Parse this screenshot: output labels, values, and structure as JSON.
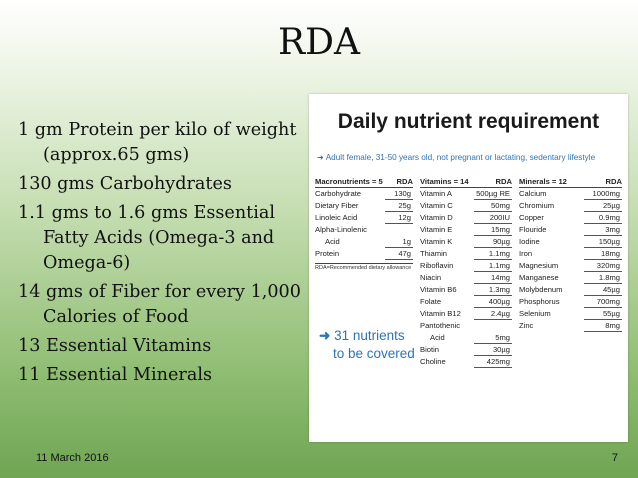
{
  "slide": {
    "title": "RDA",
    "bullets": [
      "1 gm Protein per kilo of weight (approx.65 gms)",
      "130 gms Carbohydrates",
      "1.1 gms to 1.6 gms Essential Fatty Acids (Omega-3 and Omega-6)",
      "14 gms of Fiber for every 1,000 Calories of Food",
      "13 Essential Vitamins",
      "11 Essential Minerals"
    ],
    "footer_date": "11 March 2016",
    "page_number": "7"
  },
  "figure": {
    "title": "Daily nutrient requirement",
    "subtitle": "Adult female, 31-50 years old, not pregnant or lactating, sedentary lifestyle",
    "accent_color": "#2e74b5",
    "callout_line1": "31 nutrients",
    "callout_line2": "to be covered",
    "macro": {
      "header_name": "Macronutrients = 5",
      "header_value": "RDA",
      "rows": [
        {
          "name": "Carbohydrate",
          "value": "130g"
        },
        {
          "name": "Dietary Fiber",
          "value": "25g"
        },
        {
          "name": "Linoleic Acid",
          "value": "12g"
        },
        {
          "name": "Alpha-Linolenic",
          "value": ""
        },
        {
          "name": "Acid",
          "value": "1g"
        },
        {
          "name": "Protein",
          "value": "47g"
        }
      ],
      "note": "RDA=Recommended dietary allowance"
    },
    "vitamins": {
      "header_name": "Vitamins = 14",
      "header_value": "RDA",
      "rows": [
        {
          "name": "Vitamin A",
          "value": "500µg RE"
        },
        {
          "name": "Vitamin C",
          "value": "50mg"
        },
        {
          "name": "Vitamin D",
          "value": "200IU"
        },
        {
          "name": "Vitamin E",
          "value": "15mg"
        },
        {
          "name": "Vitamin K",
          "value": "90µg"
        },
        {
          "name": "Thiamin",
          "value": "1.1mg"
        },
        {
          "name": "Riboflavin",
          "value": "1.1mg"
        },
        {
          "name": "Niacin",
          "value": "14mg"
        },
        {
          "name": "Vitamin B6",
          "value": "1.3mg"
        },
        {
          "name": "Folate",
          "value": "400µg"
        },
        {
          "name": "Vitamin B12",
          "value": "2.4µg"
        },
        {
          "name": "Pantothenic",
          "value": ""
        },
        {
          "name": "Acid",
          "value": "5mg"
        },
        {
          "name": "Biotin",
          "value": "30µg"
        },
        {
          "name": "Choline",
          "value": "425mg"
        }
      ]
    },
    "minerals": {
      "header_name": "Minerals = 12",
      "header_value": "RDA",
      "rows": [
        {
          "name": "Calcium",
          "value": "1000mg"
        },
        {
          "name": "Chromium",
          "value": "25µg"
        },
        {
          "name": "Copper",
          "value": "0.9mg"
        },
        {
          "name": "Flouride",
          "value": "3mg"
        },
        {
          "name": "Iodine",
          "value": "150µg"
        },
        {
          "name": "Iron",
          "value": "18mg"
        },
        {
          "name": "Magnesium",
          "value": "320mg"
        },
        {
          "name": "Manganese",
          "value": "1.8mg"
        },
        {
          "name": "Molybdenum",
          "value": "45µg"
        },
        {
          "name": "Phosphorus",
          "value": "700mg"
        },
        {
          "name": "Selenium",
          "value": "55µg"
        },
        {
          "name": "Zinc",
          "value": "8mg"
        }
      ]
    }
  }
}
